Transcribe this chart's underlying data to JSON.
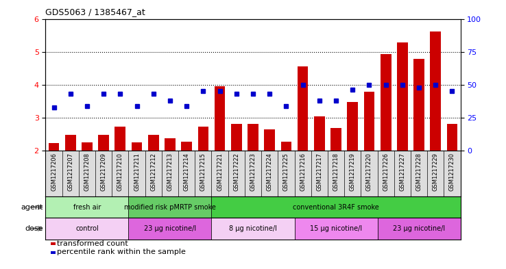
{
  "title": "GDS5063 / 1385467_at",
  "samples": [
    "GSM1217206",
    "GSM1217207",
    "GSM1217208",
    "GSM1217209",
    "GSM1217210",
    "GSM1217211",
    "GSM1217212",
    "GSM1217213",
    "GSM1217214",
    "GSM1217215",
    "GSM1217221",
    "GSM1217222",
    "GSM1217223",
    "GSM1217224",
    "GSM1217225",
    "GSM1217216",
    "GSM1217217",
    "GSM1217218",
    "GSM1217219",
    "GSM1217220",
    "GSM1217226",
    "GSM1217227",
    "GSM1217228",
    "GSM1217229",
    "GSM1217230"
  ],
  "bar_values": [
    2.22,
    2.48,
    2.25,
    2.47,
    2.72,
    2.25,
    2.47,
    2.38,
    2.27,
    2.72,
    3.95,
    2.82,
    2.82,
    2.65,
    2.27,
    4.55,
    3.05,
    2.68,
    3.48,
    3.78,
    4.93,
    5.28,
    4.78,
    5.62,
    2.82
  ],
  "dot_values": [
    33,
    43,
    34,
    43,
    43,
    34,
    43,
    38,
    34,
    45,
    45,
    43,
    43,
    43,
    34,
    50,
    38,
    38,
    46,
    50,
    50,
    50,
    48,
    50,
    45
  ],
  "bar_color": "#cc0000",
  "dot_color": "#0000cc",
  "bar_bottom": 2,
  "ylim_left": [
    2,
    6
  ],
  "ylim_right": [
    0,
    100
  ],
  "yticks_left": [
    2,
    3,
    4,
    5,
    6
  ],
  "yticks_right": [
    0,
    25,
    50,
    75,
    100
  ],
  "agent_groups": [
    {
      "label": "fresh air",
      "start": 0,
      "end": 5,
      "color": "#b3f0b3"
    },
    {
      "label": "modified risk pMRTP smoke",
      "start": 5,
      "end": 10,
      "color": "#66cc66"
    },
    {
      "label": "conventional 3R4F smoke",
      "start": 10,
      "end": 25,
      "color": "#44cc44"
    }
  ],
  "dose_groups": [
    {
      "label": "control",
      "start": 0,
      "end": 5,
      "color": "#f4d0f4"
    },
    {
      "label": "23 µg nicotine/l",
      "start": 5,
      "end": 10,
      "color": "#dd66dd"
    },
    {
      "label": "8 µg nicotine/l",
      "start": 10,
      "end": 15,
      "color": "#f4d0f4"
    },
    {
      "label": "15 µg nicotine/l",
      "start": 15,
      "end": 20,
      "color": "#ee88ee"
    },
    {
      "label": "23 µg nicotine/l",
      "start": 20,
      "end": 25,
      "color": "#dd66dd"
    }
  ],
  "legend_bar_label": "transformed count",
  "legend_dot_label": "percentile rank within the sample",
  "agent_label": "agent",
  "dose_label": "dose",
  "xtick_bg_color": "#dddddd",
  "grid_color": "#000000",
  "yaxis_left_color": "red",
  "yaxis_right_color": "blue"
}
